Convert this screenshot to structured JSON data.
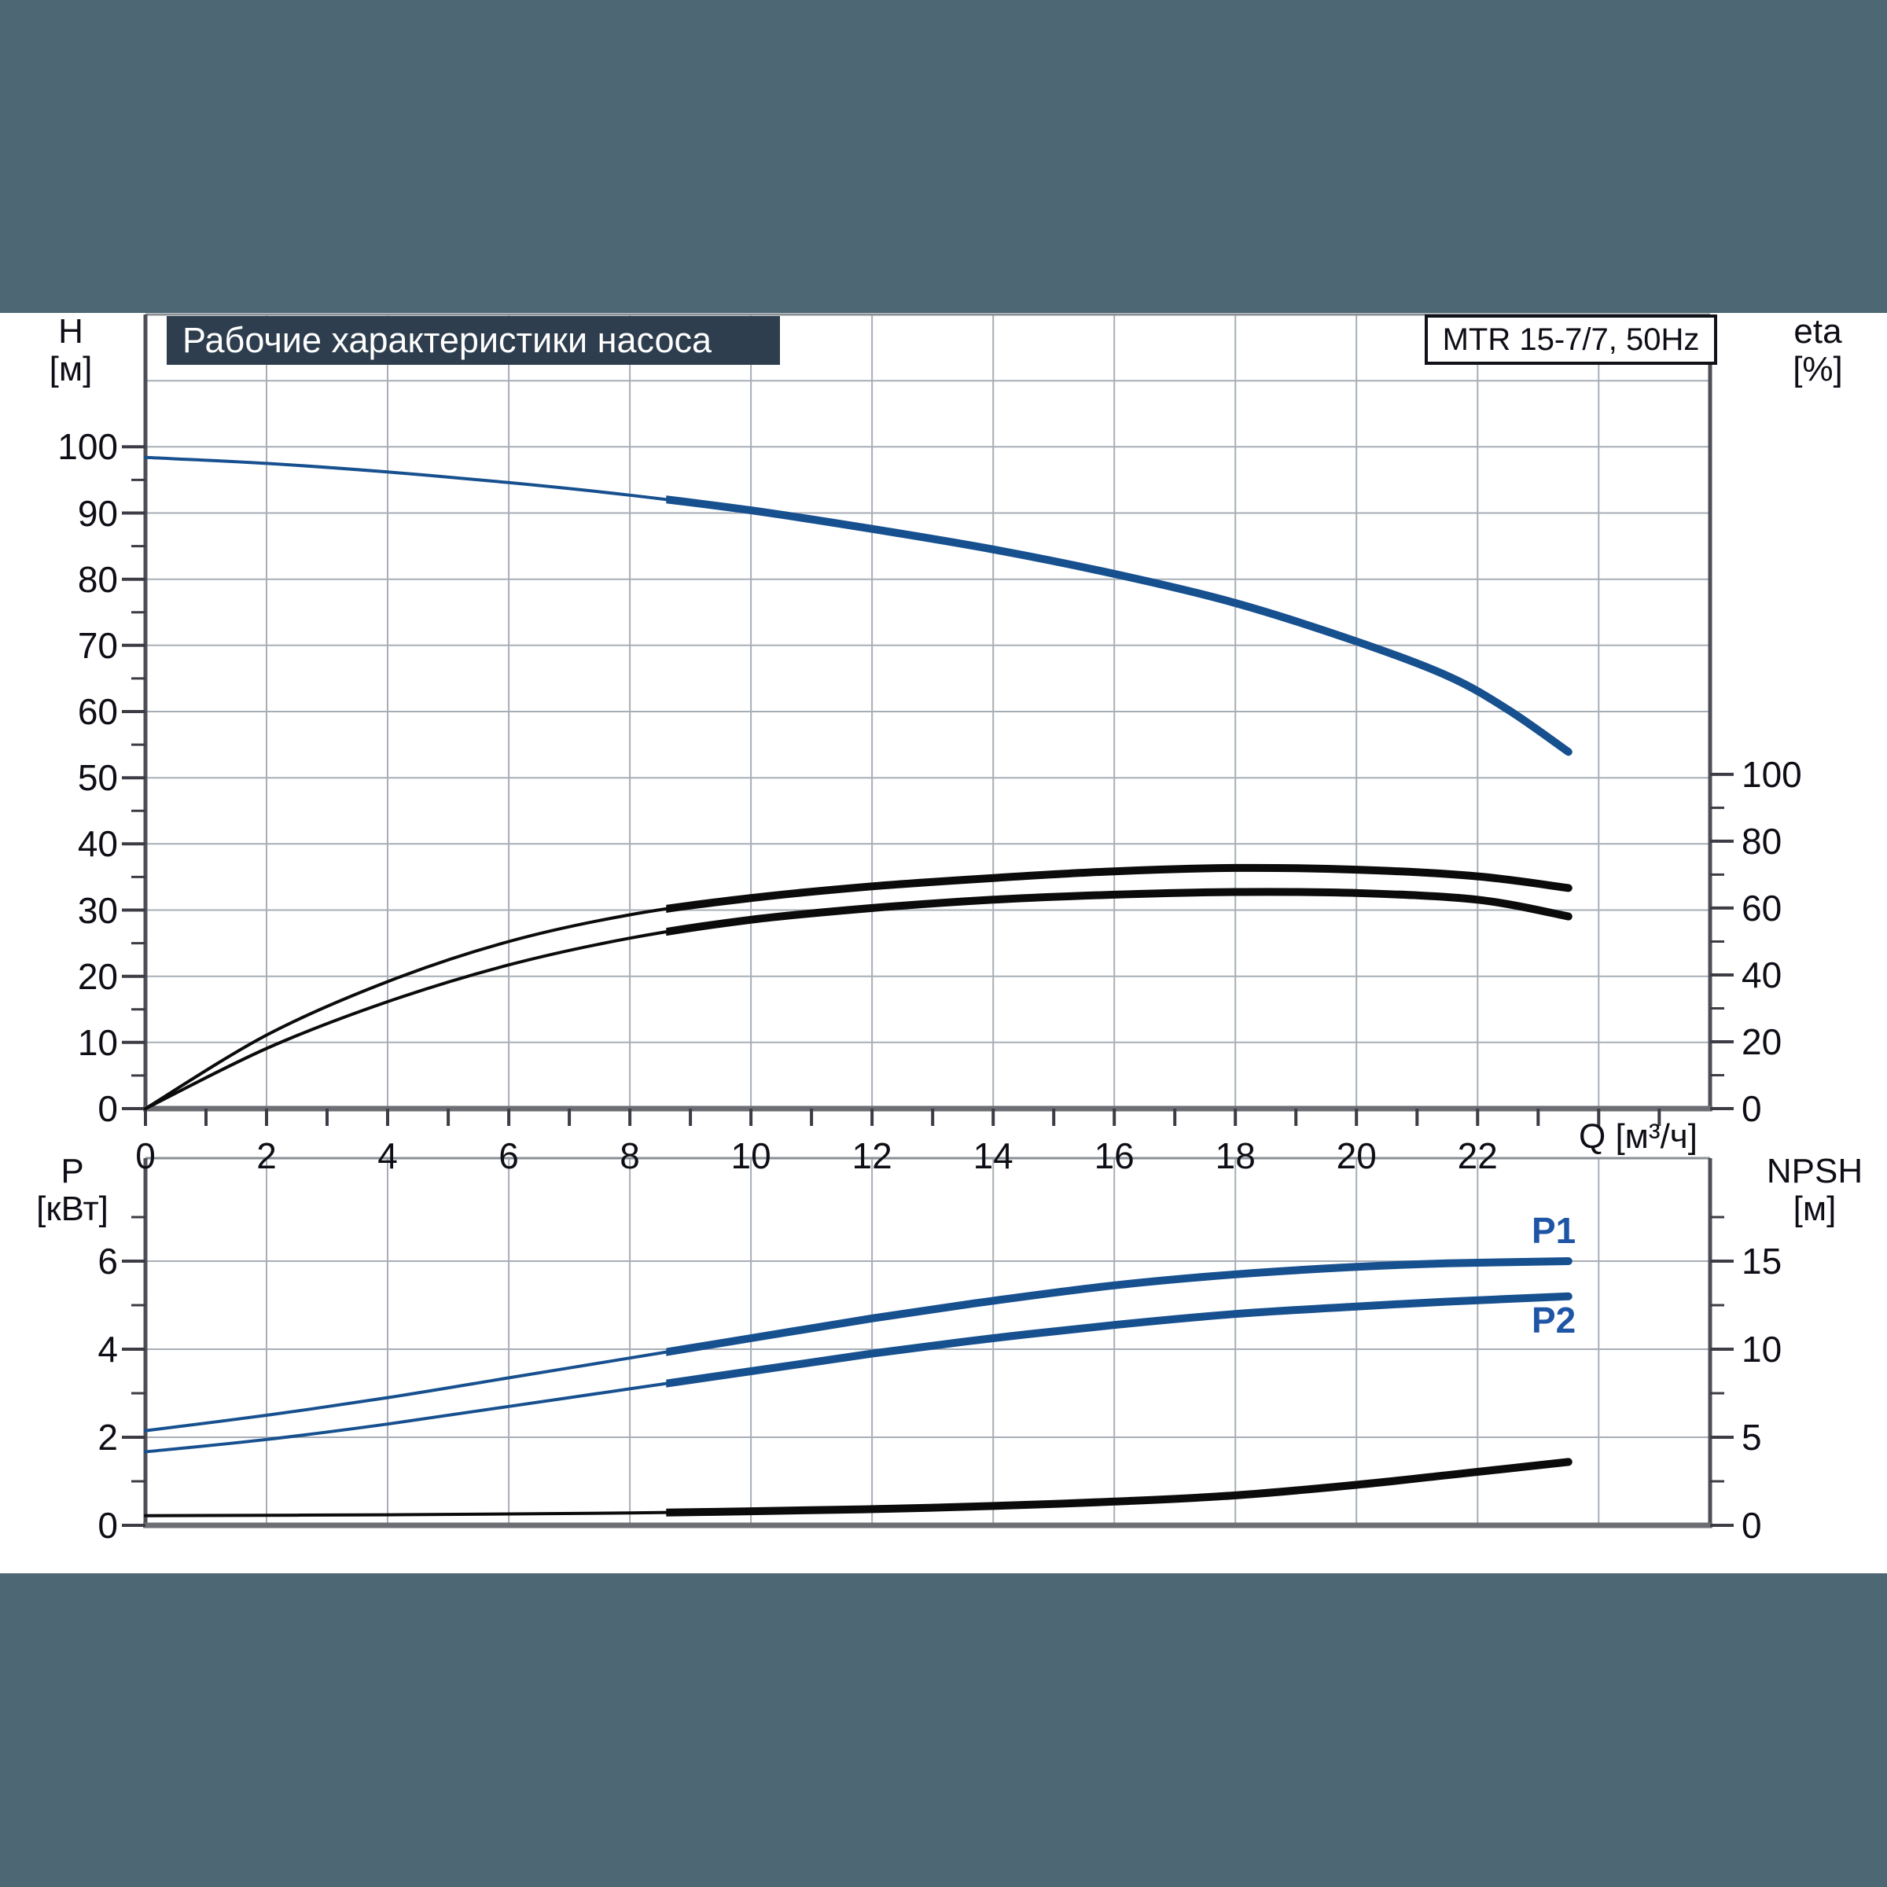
{
  "page": {
    "band_color": "#4d6874",
    "content_background": "#ffffff"
  },
  "title": {
    "text": "Рабочие характеристики насоса",
    "box_color": "#2e3e4e",
    "text_color": "#ffffff"
  },
  "model_badge": {
    "text": "MTR 15-7/7, 50Hz"
  },
  "colors": {
    "curve_blue": "#17508f",
    "curve_black": "#0b0b0b",
    "curve_label_blue": "#1f55a5",
    "grid": "#a7aeb6",
    "axis": "#4e4e57",
    "x_axis_heavy": "#6d6d74",
    "text": "#0e0e16"
  },
  "chart_data": [
    {
      "type": "line",
      "title": "Рабочие характеристики насоса",
      "model": "MTR 15-7/7, 50Hz",
      "grid": true,
      "x": {
        "label": "Q [м³/ч]",
        "range": [
          0,
          25.84
        ],
        "tick_step": 1,
        "tick_labels": [
          0,
          2,
          4,
          6,
          8,
          10,
          12,
          14,
          16,
          18,
          20,
          22
        ]
      },
      "y_left": {
        "label": "H [м]",
        "label_line1": "H",
        "label_line2": "[м]",
        "range": [
          0,
          120
        ],
        "ticks": [
          0,
          10,
          20,
          30,
          40,
          50,
          60,
          70,
          80,
          90,
          100
        ]
      },
      "y_right": {
        "label": "eta [%]",
        "label_line1": "eta",
        "label_line2": "[%]",
        "range": [
          0,
          237.6
        ],
        "ticks": [
          0,
          20,
          40,
          60,
          80,
          100
        ]
      },
      "duty_range": [
        8.6,
        23.5
      ],
      "series": [
        {
          "name": "head-curve",
          "label": "",
          "axis": "left",
          "color": "#17508f",
          "q": [
            0,
            2,
            4,
            6,
            8,
            10,
            12,
            14,
            16,
            18,
            20,
            21.5,
            22.5,
            23.5
          ],
          "v": [
            98.4,
            97.5,
            96.2,
            94.6,
            92.7,
            90.4,
            87.6,
            84.5,
            80.8,
            76.4,
            70.6,
            65.4,
            60.3,
            53.9
          ]
        },
        {
          "name": "eta-upper-curve",
          "label": "",
          "axis": "right",
          "color": "#0b0b0b",
          "q": [
            0,
            2,
            4,
            6,
            8,
            10,
            12,
            14,
            16,
            18,
            20,
            22,
            23.5
          ],
          "v": [
            0,
            22,
            38,
            50,
            58,
            63,
            66.5,
            69,
            71,
            72,
            71.5,
            69.5,
            66
          ]
        },
        {
          "name": "eta-lower-curve",
          "label": "",
          "axis": "right",
          "color": "#0b0b0b",
          "q": [
            0,
            2,
            4,
            6,
            8,
            10,
            12,
            14,
            16,
            18,
            20,
            22,
            23.5
          ],
          "v": [
            0,
            18,
            32,
            43,
            51,
            56.5,
            60,
            62.5,
            64,
            64.8,
            64.5,
            62.5,
            57.5
          ]
        }
      ]
    },
    {
      "type": "line",
      "grid": true,
      "x": {
        "label": "",
        "range": [
          0,
          25.84
        ],
        "tick_step": 0,
        "tick_labels": []
      },
      "y_left": {
        "label": "P [кВт]",
        "label_line1": "P",
        "label_line2": "[кВт]",
        "range": [
          0,
          8.34
        ],
        "ticks": [
          0,
          2,
          4,
          6
        ]
      },
      "y_right": {
        "label": "NPSH [м]",
        "label_line1": "NPSH",
        "label_line2": "[м]",
        "range": [
          0,
          20.85
        ],
        "ticks": [
          0,
          5,
          10,
          15
        ]
      },
      "duty_range": [
        8.6,
        23.5
      ],
      "series": [
        {
          "name": "p1-curve",
          "label": "P1",
          "axis": "left",
          "color": "#17508f",
          "q": [
            0,
            2,
            4,
            6,
            8,
            10,
            12,
            14,
            16,
            18,
            20,
            21.5,
            23.5
          ],
          "v": [
            2.15,
            2.5,
            2.9,
            3.35,
            3.8,
            4.25,
            4.7,
            5.1,
            5.45,
            5.7,
            5.87,
            5.95,
            6.0
          ]
        },
        {
          "name": "p2-curve",
          "label": "P2",
          "axis": "left",
          "color": "#17508f",
          "q": [
            0,
            2,
            4,
            6,
            8,
            10,
            12,
            14,
            16,
            18,
            20,
            21.5,
            23.5
          ],
          "v": [
            1.67,
            1.95,
            2.3,
            2.7,
            3.1,
            3.5,
            3.9,
            4.25,
            4.55,
            4.8,
            4.97,
            5.08,
            5.2
          ]
        },
        {
          "name": "npsh-curve",
          "label": "",
          "axis": "right",
          "color": "#0b0b0b",
          "q": [
            0,
            4,
            8,
            10,
            12,
            14,
            16,
            18,
            20,
            21.5,
            23.5
          ],
          "v": [
            0.55,
            0.6,
            0.7,
            0.8,
            0.92,
            1.1,
            1.35,
            1.7,
            2.3,
            2.85,
            3.6
          ]
        }
      ]
    }
  ]
}
